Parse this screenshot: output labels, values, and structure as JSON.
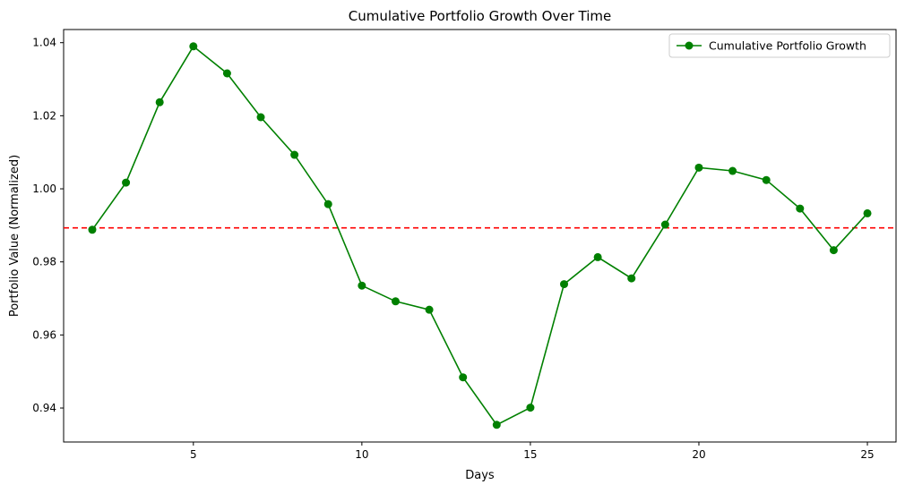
{
  "chart_data": {
    "type": "line",
    "title": "Cumulative Portfolio Growth Over Time",
    "xlabel": "Days",
    "ylabel": "Portfolio Value (Normalized)",
    "xlim": [
      1.15,
      25.85
    ],
    "ylim": [
      0.9307,
      1.0436
    ],
    "xticks": [
      5,
      10,
      15,
      20,
      25
    ],
    "yticks": [
      0.94,
      0.96,
      0.98,
      1.0,
      1.02,
      1.04
    ],
    "ytick_format": "0.00",
    "grid": false,
    "legend_position": "top-right",
    "series": [
      {
        "name": "Cumulative Portfolio Growth",
        "color": "#008000",
        "marker": "circle",
        "x": [
          2,
          3,
          4,
          5,
          6,
          7,
          8,
          9,
          10,
          11,
          12,
          13,
          14,
          15,
          16,
          17,
          18,
          19,
          20,
          21,
          22,
          23,
          24,
          25
        ],
        "y": [
          0.9888,
          1.0017,
          1.0237,
          1.039,
          1.0316,
          1.0196,
          1.0093,
          0.9958,
          0.9735,
          0.9692,
          0.9669,
          0.9484,
          0.9354,
          0.9401,
          0.9739,
          0.9813,
          0.9755,
          0.9902,
          1.0058,
          1.0049,
          1.0024,
          0.9946,
          0.9832,
          0.9933
        ]
      }
    ],
    "reference_line": {
      "orientation": "horizontal",
      "y": 0.9893,
      "color": "#ff0000",
      "style": "dashed"
    }
  }
}
